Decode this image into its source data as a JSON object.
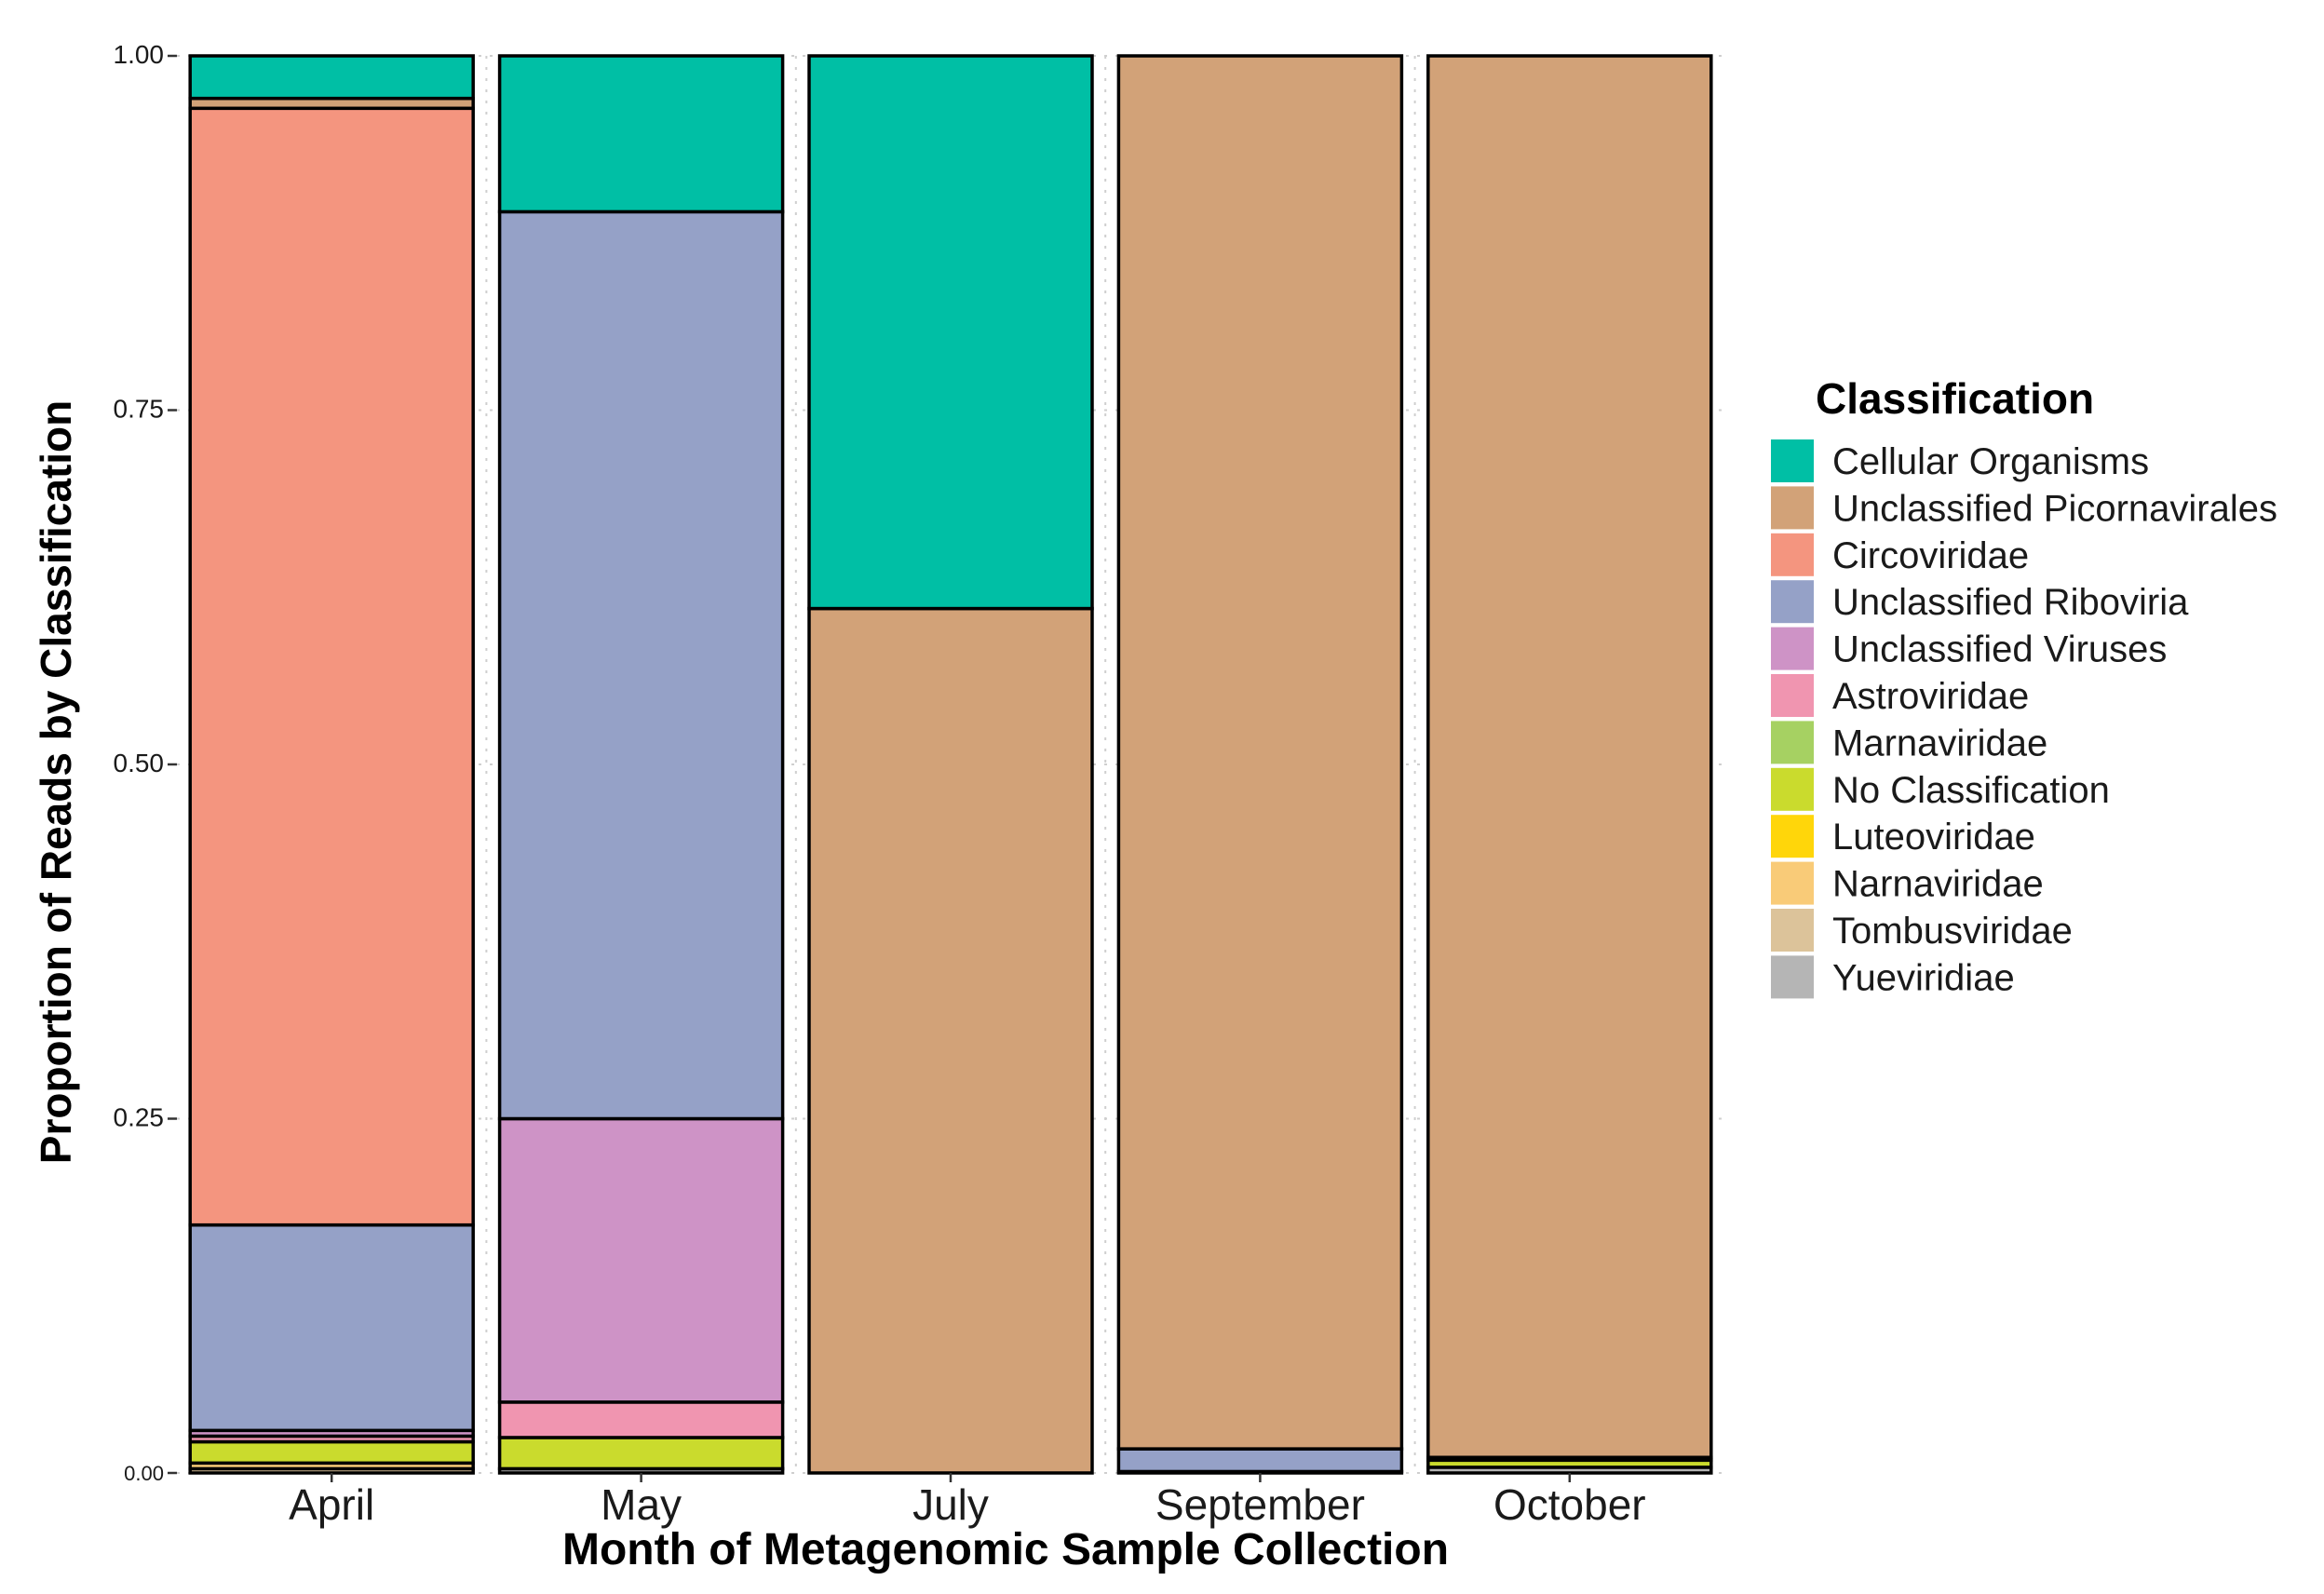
{
  "chart_data": {
    "type": "bar",
    "stacked": true,
    "normalized": true,
    "title": "",
    "xlabel": "Month of Metagenomic Sample Collection",
    "ylabel": "Proportion of Reads by Classification",
    "ylim": [
      0,
      1
    ],
    "yticks": [
      0,
      0.25,
      0.5,
      0.75,
      1
    ],
    "ytick_labels": [
      "0.00",
      "0.25",
      "0.50",
      "0.75",
      "1.00"
    ],
    "grid": true,
    "categories": [
      "April",
      "May",
      "July",
      "September",
      "October"
    ],
    "legend": {
      "title": "Classification",
      "position": "right"
    },
    "series": [
      {
        "name": "Cellular Organisms",
        "color": "#00BFA5",
        "values": [
          0.03,
          0.11,
          0.39,
          0.0,
          0.0
        ]
      },
      {
        "name": "Unclassified Picornavirales",
        "color": "#D2A278",
        "values": [
          0.007,
          0.0,
          0.61,
          0.983,
          0.989
        ]
      },
      {
        "name": "Circoviridae",
        "color": "#F4957F",
        "values": [
          0.788,
          0.0,
          0.0,
          0.0,
          0.0
        ]
      },
      {
        "name": "Unclassified Riboviria",
        "color": "#95A1C7",
        "values": [
          0.145,
          0.64,
          0.0,
          0.016,
          0.002
        ]
      },
      {
        "name": "Unclassified Viruses",
        "color": "#CE93C6",
        "values": [
          0.004,
          0.2,
          0.0,
          0.0,
          0.0
        ]
      },
      {
        "name": "Astroviridae",
        "color": "#F095B0",
        "values": [
          0.004,
          0.025,
          0.0,
          0.0,
          0.0
        ]
      },
      {
        "name": "Marnaviridae",
        "color": "#A6D162",
        "values": [
          0.0,
          0.0,
          0.0,
          0.0,
          0.0
        ]
      },
      {
        "name": "No Classification",
        "color": "#CADB2D",
        "values": [
          0.015,
          0.022,
          0.0,
          0.001,
          0.005
        ]
      },
      {
        "name": "Luteoviridae",
        "color": "#FFD60A",
        "values": [
          0.0,
          0.0,
          0.0,
          0.0,
          0.0
        ]
      },
      {
        "name": "Narnaviridae",
        "color": "#F9CB78",
        "values": [
          0.004,
          0.0,
          0.0,
          0.0,
          0.0
        ]
      },
      {
        "name": "Tombusviridae",
        "color": "#DCC39A",
        "values": [
          0.003,
          0.0,
          0.0,
          0.0,
          0.0
        ]
      },
      {
        "name": "Yueviridiae",
        "color": "#B5B5B5",
        "values": [
          0.0,
          0.003,
          0.0,
          0.0,
          0.004
        ]
      }
    ]
  }
}
